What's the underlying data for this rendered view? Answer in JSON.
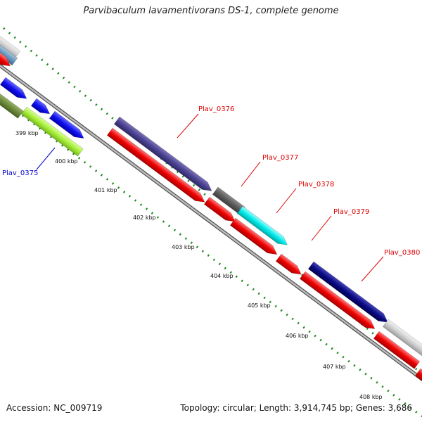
{
  "title": "Parvibaculum lavamentivorans DS-1, complete genome",
  "accession_text": "Accession: NC_009719",
  "summary_text": "Topology: circular; Length: 3,914,745 bp; Genes: 3,686",
  "colors": {
    "backbone": "#8a8a8a",
    "tick": "#1f8a1f",
    "reverse_strand_gene": "#ff0000",
    "label_forward": "#0000cc",
    "label_reverse": "#dd0000"
  },
  "scale_labels": [
    "399 kbp",
    "400 kbp",
    "401 kbp",
    "402 kbp",
    "403 kbp",
    "404 kbp",
    "405 kbp",
    "406 kbp",
    "407 kbp",
    "408 kbp"
  ],
  "gene_labels": [
    "Plav_0375",
    "Plav_0376",
    "Plav_0377",
    "Plav_0378",
    "Plav_0379",
    "Plav_0380"
  ]
}
